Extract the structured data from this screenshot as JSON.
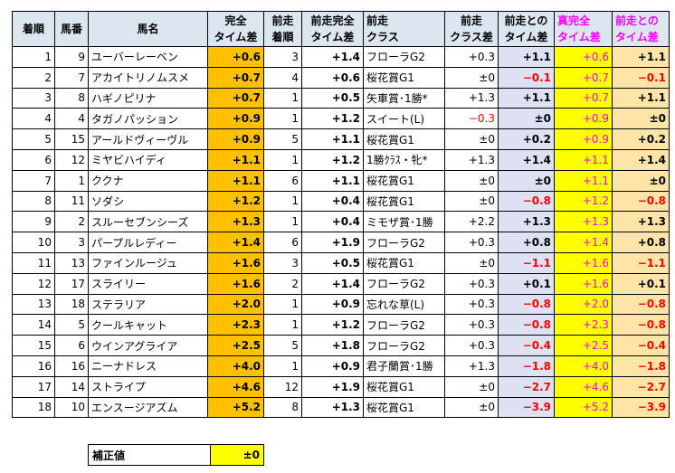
{
  "headers": {
    "rank": "着順",
    "num": "馬番",
    "name": "馬名",
    "perfect": [
      "完全",
      "タイム差"
    ],
    "prev_rank": [
      "前走",
      "着順"
    ],
    "prev_perfect": [
      "前走完全",
      "タイム差"
    ],
    "prev_class": [
      "前走",
      "クラス"
    ],
    "class_diff": [
      "前走",
      "クラス差"
    ],
    "prev_time_diff": [
      "前走との",
      "タイム差"
    ],
    "true_perfect": [
      "真完全",
      "タイム差"
    ],
    "prev_true_diff": [
      "前走との",
      "タイム差"
    ]
  },
  "rows": [
    {
      "rank": "1",
      "num": "9",
      "name": "ユーバーレーベン",
      "perfect": "+0.6",
      "prev_rank": "3",
      "prev_perfect": "+1.4",
      "prev_class": "フローラG2",
      "class_diff": "+0.3",
      "diff1": "+1.1",
      "true_perfect": "+0.6",
      "diff2": "+1.1"
    },
    {
      "rank": "2",
      "num": "7",
      "name": "アカイトリノムスメ",
      "perfect": "+0.7",
      "prev_rank": "4",
      "prev_perfect": "+0.6",
      "prev_class": "桜花賞G1",
      "class_diff": "±0",
      "diff1": "−0.1",
      "true_perfect": "+0.7",
      "diff2": "−0.1"
    },
    {
      "rank": "3",
      "num": "8",
      "name": "ハギノピリナ",
      "perfect": "+0.7",
      "prev_rank": "1",
      "prev_perfect": "+0.5",
      "prev_class": "矢車賞･1勝*",
      "class_diff": "+1.3",
      "diff1": "+1.1",
      "true_perfect": "+0.7",
      "diff2": "+1.1"
    },
    {
      "rank": "4",
      "num": "4",
      "name": "タガノパッション",
      "perfect": "+0.9",
      "prev_rank": "1",
      "prev_perfect": "+1.2",
      "prev_class": "スイート(L)",
      "class_diff": "−0.3",
      "diff1": "±0",
      "true_perfect": "+0.9",
      "diff2": "±0"
    },
    {
      "rank": "5",
      "num": "15",
      "name": "アールドヴィーヴル",
      "perfect": "+0.9",
      "prev_rank": "5",
      "prev_perfect": "+1.1",
      "prev_class": "桜花賞G1",
      "class_diff": "±0",
      "diff1": "+0.2",
      "true_perfect": "+0.9",
      "diff2": "+0.2"
    },
    {
      "rank": "6",
      "num": "12",
      "name": "ミヤビハイディ",
      "perfect": "+1.1",
      "prev_rank": "1",
      "prev_perfect": "+1.2",
      "prev_class": "1勝ｸﾗｽ・牝*",
      "class_diff": "+1.3",
      "diff1": "+1.4",
      "true_perfect": "+1.1",
      "diff2": "+1.4"
    },
    {
      "rank": "7",
      "num": "1",
      "name": "ククナ",
      "perfect": "+1.1",
      "prev_rank": "6",
      "prev_perfect": "+1.1",
      "prev_class": "桜花賞G1",
      "class_diff": "±0",
      "diff1": "±0",
      "true_perfect": "+1.1",
      "diff2": "±0"
    },
    {
      "rank": "8",
      "num": "11",
      "name": "ソダシ",
      "perfect": "+1.2",
      "prev_rank": "1",
      "prev_perfect": "+0.4",
      "prev_class": "桜花賞G1",
      "class_diff": "±0",
      "diff1": "−0.8",
      "true_perfect": "+1.2",
      "diff2": "−0.8"
    },
    {
      "rank": "9",
      "num": "2",
      "name": "スルーセブンシーズ",
      "perfect": "+1.3",
      "prev_rank": "1",
      "prev_perfect": "+0.4",
      "prev_class": "ミモザ賞･1勝",
      "class_diff": "+2.2",
      "diff1": "+1.3",
      "true_perfect": "+1.3",
      "diff2": "+1.3"
    },
    {
      "rank": "10",
      "num": "3",
      "name": "パープルレディー",
      "perfect": "+1.4",
      "prev_rank": "6",
      "prev_perfect": "+1.9",
      "prev_class": "フローラG2",
      "class_diff": "+0.3",
      "diff1": "+0.8",
      "true_perfect": "+1.4",
      "diff2": "+0.8"
    },
    {
      "rank": "11",
      "num": "13",
      "name": "ファインルージュ",
      "perfect": "+1.6",
      "prev_rank": "3",
      "prev_perfect": "+0.5",
      "prev_class": "桜花賞G1",
      "class_diff": "±0",
      "diff1": "−1.1",
      "true_perfect": "+1.6",
      "diff2": "−1.1"
    },
    {
      "rank": "12",
      "num": "17",
      "name": "スライリー",
      "perfect": "+1.6",
      "prev_rank": "2",
      "prev_perfect": "+1.4",
      "prev_class": "フローラG2",
      "class_diff": "+0.3",
      "diff1": "+0.1",
      "true_perfect": "+1.6",
      "diff2": "+0.1"
    },
    {
      "rank": "13",
      "num": "18",
      "name": "ステラリア",
      "perfect": "+2.0",
      "prev_rank": "1",
      "prev_perfect": "+0.9",
      "prev_class": "忘れな草(L)",
      "class_diff": "+0.3",
      "diff1": "−0.8",
      "true_perfect": "+2.0",
      "diff2": "−0.8"
    },
    {
      "rank": "14",
      "num": "5",
      "name": "クールキャット",
      "perfect": "+2.3",
      "prev_rank": "1",
      "prev_perfect": "+1.2",
      "prev_class": "フローラG2",
      "class_diff": "+0.3",
      "diff1": "−0.8",
      "true_perfect": "+2.3",
      "diff2": "−0.8"
    },
    {
      "rank": "15",
      "num": "6",
      "name": "ウインアグライア",
      "perfect": "+2.5",
      "prev_rank": "5",
      "prev_perfect": "+1.8",
      "prev_class": "フローラG2",
      "class_diff": "+0.3",
      "diff1": "−0.4",
      "true_perfect": "+2.5",
      "diff2": "−0.4"
    },
    {
      "rank": "16",
      "num": "16",
      "name": "ニーナドレス",
      "perfect": "+4.0",
      "prev_rank": "1",
      "prev_perfect": "+0.9",
      "prev_class": "君子蘭賞･1勝",
      "class_diff": "+1.3",
      "diff1": "−1.8",
      "true_perfect": "+4.0",
      "diff2": "−1.8"
    },
    {
      "rank": "17",
      "num": "14",
      "name": "ストライプ",
      "perfect": "+4.6",
      "prev_rank": "12",
      "prev_perfect": "+1.9",
      "prev_class": "桜花賞G1",
      "class_diff": "±0",
      "diff1": "−2.7",
      "true_perfect": "+4.6",
      "diff2": "−2.7"
    },
    {
      "rank": "18",
      "num": "10",
      "name": "エンスージアズム",
      "perfect": "+5.2",
      "prev_rank": "8",
      "prev_perfect": "+1.3",
      "prev_class": "桜花賞G1",
      "class_diff": "±0",
      "diff1": "−3.9",
      "true_perfect": "+5.2",
      "diff2": "−3.9"
    }
  ],
  "hosei": {
    "label": "補正値",
    "value": "±0"
  },
  "colors": {
    "header_bg": "#dce6f1",
    "perfect_bg": "#ffc000",
    "prev_diff_bg": "#dde1f3",
    "true_perfect_bg": "#ffff00",
    "prev_true_bg": "#ffe4a8",
    "negative": "#ff0000",
    "pink_text": "#ff00ff"
  }
}
